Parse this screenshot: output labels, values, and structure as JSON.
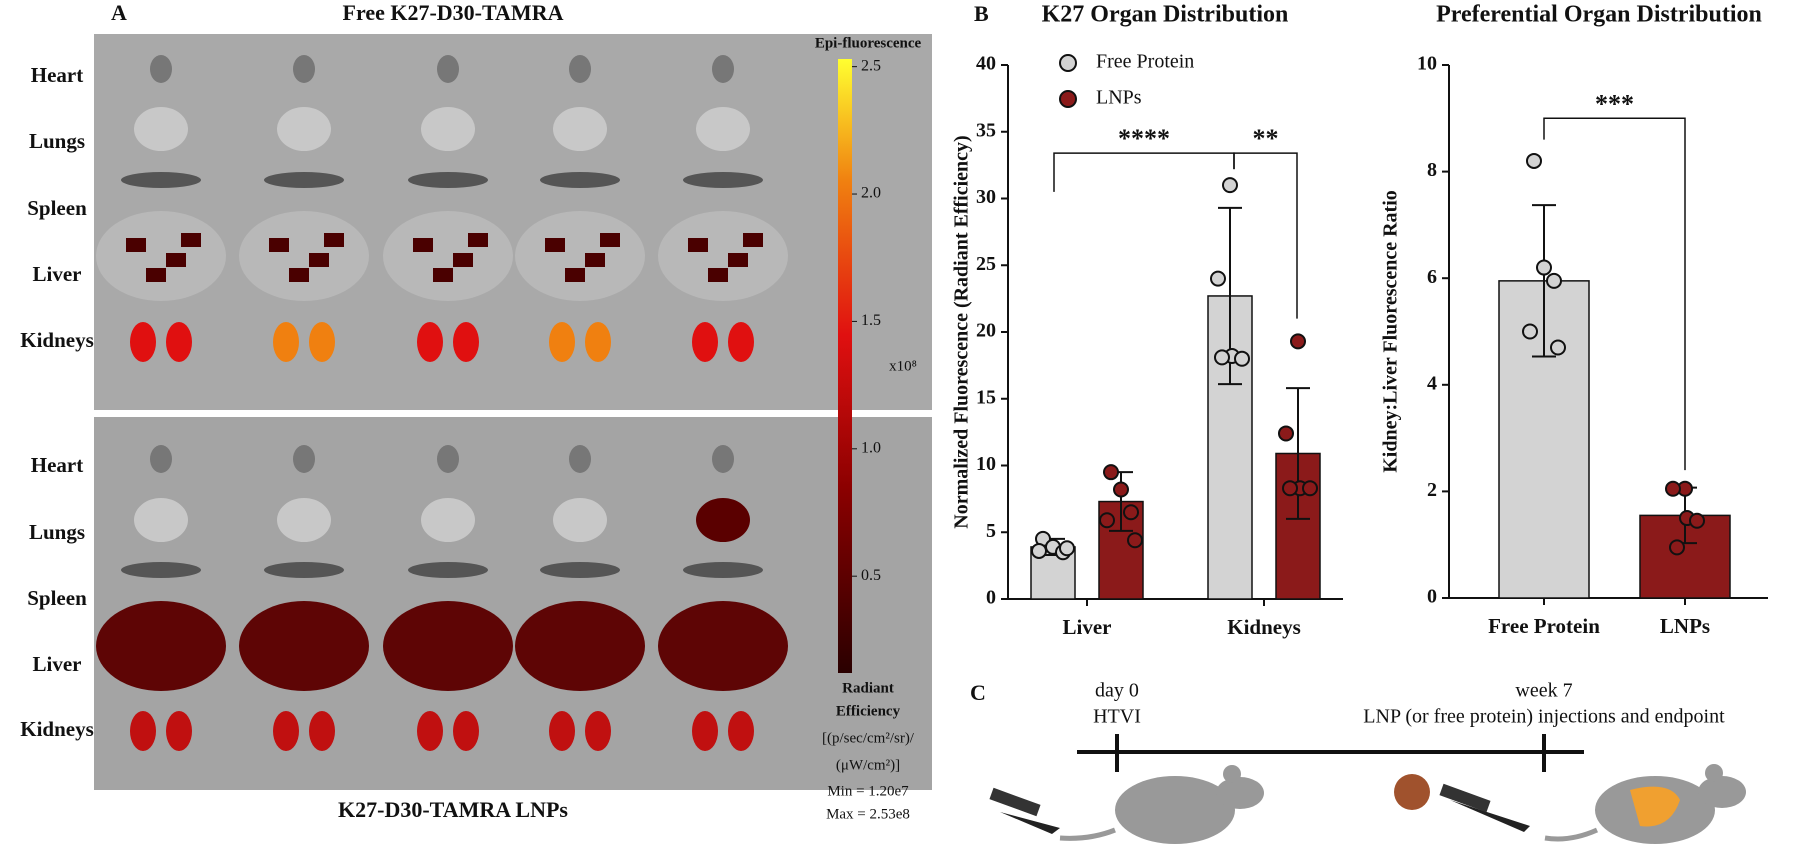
{
  "panel_a": {
    "label": "A",
    "top_title": "Free K27-D30-TAMRA",
    "bottom_title": "K27-D30-TAMRA LNPs",
    "organs": [
      "Heart",
      "Lungs",
      "Spleen",
      "Liver",
      "Kidneys"
    ],
    "colorbar": {
      "title": "Epi-fluorescence",
      "lim": [
        0.12,
        2.53
      ],
      "ticks": [
        {
          "value": 2.5,
          "label": "2.5"
        },
        {
          "value": 2.0,
          "label": "2.0"
        },
        {
          "value": 1.5,
          "label": "1.5"
        },
        {
          "value": 1.0,
          "label": "1.0"
        },
        {
          "value": 0.5,
          "label": "0.5"
        }
      ],
      "multiplier": "x10⁸",
      "unit_title": [
        "Radiant",
        "Efficiency"
      ],
      "unit_lines": [
        "[(p/sec/cm²/sr)/",
        "(μW/cm²)]"
      ],
      "min_label": "Min = 1.20e7",
      "max_label": "Max = 2.53e8"
    }
  },
  "chart_data": [
    {
      "type": "bar",
      "panel_label": "B",
      "title": "K27 Organ Distribution",
      "ylabel": "Normalized  Fluorescence (Radiant Efficiency)",
      "categories": [
        "Liver",
        "Kidneys"
      ],
      "series": [
        {
          "name": "Free Protein",
          "color": "#d3d3d3",
          "values": [
            3.9,
            22.7
          ],
          "errors": [
            0.6,
            6.6
          ],
          "points": [
            [
              4.5,
              3.9,
              3.5,
              3.6,
              3.8
            ],
            [
              31,
              24,
              18.2,
              18,
              18.1
            ]
          ]
        },
        {
          "name": "LNPs",
          "color": "#8b1a1a",
          "values": [
            7.3,
            10.9
          ],
          "errors": [
            2.2,
            4.9
          ],
          "points": [
            [
              9.5,
              8.2,
              6.5,
              5.9,
              4.4
            ],
            [
              19.3,
              12.4,
              8.3,
              8.3,
              8.3
            ]
          ]
        }
      ],
      "ylim": [
        0,
        40
      ],
      "yticks": [
        0,
        5,
        10,
        15,
        20,
        25,
        30,
        35,
        40
      ],
      "legend": "upper left",
      "significance": [
        "****",
        "**"
      ]
    },
    {
      "type": "bar",
      "title": "Preferential Organ Distribution",
      "ylabel": "Kidney:Liver Fluorescence Ratio",
      "categories": [
        "Free Protein",
        "LNPs"
      ],
      "colors": [
        "#d3d3d3",
        "#8b1a1a"
      ],
      "values": [
        5.95,
        1.55
      ],
      "errors": [
        1.42,
        0.52
      ],
      "points": [
        [
          8.2,
          6.2,
          5.95,
          5.0,
          4.7
        ],
        [
          2.05,
          2.05,
          1.5,
          1.45,
          0.95
        ]
      ],
      "ylim": [
        0,
        10
      ],
      "yticks": [
        0,
        2,
        4,
        6,
        8,
        10
      ],
      "significance": [
        "***"
      ]
    }
  ],
  "panel_c": {
    "label": "C",
    "events": [
      {
        "time": "day 0",
        "description": "HTVI"
      },
      {
        "time": "week 7",
        "description": "LNP (or free protein) injections and endpoint"
      }
    ]
  }
}
